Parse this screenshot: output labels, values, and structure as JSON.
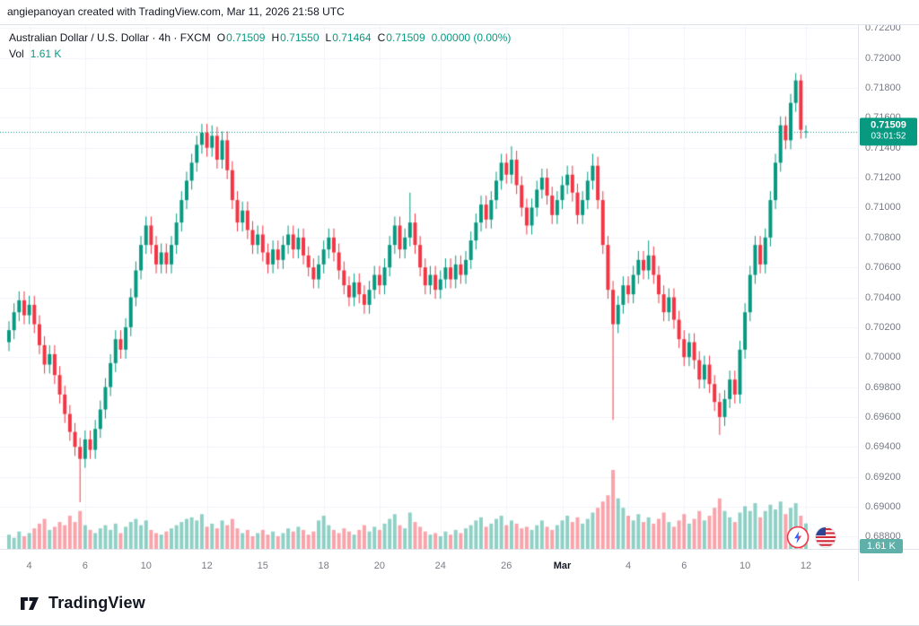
{
  "attribution": "angiepanoyan created with TradingView.com, Mar 11, 2026 21:58 UTC",
  "legend": {
    "symbol_text": "Australian Dollar / U.S. Dollar · 4h · FXCM",
    "ohlc": [
      {
        "label": "O",
        "value": "0.71509"
      },
      {
        "label": "H",
        "value": "0.71550"
      },
      {
        "label": "L",
        "value": "0.71464"
      },
      {
        "label": "C",
        "value": "0.71509"
      }
    ],
    "change": "0.00000 (0.00%)",
    "vol_label": "Vol",
    "vol_value": "1.61 K"
  },
  "price_axis": {
    "ticks": [
      "0.72200",
      "0.72000",
      "0.71800",
      "0.71600",
      "0.71400",
      "0.71200",
      "0.71000",
      "0.70800",
      "0.70600",
      "0.70400",
      "0.70200",
      "0.70000",
      "0.69800",
      "0.69600",
      "0.69400",
      "0.69200",
      "0.69000",
      "0.68800"
    ],
    "badge": {
      "price": "0.71509",
      "countdown": "03:01:52"
    },
    "vol_badge": "1.61 K"
  },
  "footer": {
    "brand": "TradingView"
  },
  "icons": {
    "boost": "lightning-icon",
    "flag": "us-flag-icon"
  },
  "colors": {
    "up": "#089981",
    "down": "#f23645",
    "vol_up": "rgba(8,153,129,0.45)",
    "vol_down": "rgba(242,54,69,0.45)",
    "grid": "#f0f3fa",
    "axis_text": "#787b86",
    "badge_bg": "#089981",
    "vol_badge_bg": "#5fb0a9"
  },
  "chart_data": {
    "type": "candlestick",
    "title": "Australian Dollar / U.S. Dollar",
    "symbol": "AUD/USD",
    "exchange": "FXCM",
    "interval": "4h",
    "ylim": [
      0.6876,
      0.7222
    ],
    "price_tick_step": 0.002,
    "current_price": 0.71509,
    "volume_max_k": 5.0,
    "last_volume_k": 1.61,
    "legend_position": "top-left",
    "grid": true,
    "candles": [
      [
        0.701,
        0.7024,
        0.7004,
        0.7018
      ],
      [
        0.7018,
        0.7036,
        0.7012,
        0.703
      ],
      [
        0.703,
        0.7044,
        0.7024,
        0.7038
      ],
      [
        0.7038,
        0.7044,
        0.7022,
        0.7028
      ],
      [
        0.7028,
        0.7041,
        0.7022,
        0.7035
      ],
      [
        0.7035,
        0.7041,
        0.7016,
        0.7022
      ],
      [
        0.7022,
        0.7028,
        0.7002,
        0.7008
      ],
      [
        0.7008,
        0.7014,
        0.6989,
        0.6995
      ],
      [
        0.6995,
        0.7008,
        0.6989,
        0.7002
      ],
      [
        0.7002,
        0.7008,
        0.6982,
        0.6988
      ],
      [
        0.6988,
        0.6994,
        0.6969,
        0.6975
      ],
      [
        0.6975,
        0.6981,
        0.6956,
        0.6962
      ],
      [
        0.6962,
        0.6968,
        0.6944,
        0.695
      ],
      [
        0.695,
        0.6956,
        0.6934,
        0.694
      ],
      [
        0.694,
        0.6946,
        0.6903,
        0.6932
      ],
      [
        0.6932,
        0.6951,
        0.6926,
        0.6945
      ],
      [
        0.6945,
        0.6951,
        0.6932,
        0.6938
      ],
      [
        0.6938,
        0.6958,
        0.6932,
        0.6952
      ],
      [
        0.6952,
        0.6971,
        0.6946,
        0.6965
      ],
      [
        0.6965,
        0.6986,
        0.6959,
        0.698
      ],
      [
        0.698,
        0.7002,
        0.6974,
        0.6996
      ],
      [
        0.6996,
        0.7018,
        0.699,
        0.7012
      ],
      [
        0.7012,
        0.7018,
        0.6999,
        0.7005
      ],
      [
        0.7005,
        0.7026,
        0.6999,
        0.702
      ],
      [
        0.702,
        0.7046,
        0.7014,
        0.704
      ],
      [
        0.704,
        0.7064,
        0.7034,
        0.7058
      ],
      [
        0.7058,
        0.7081,
        0.7052,
        0.7075
      ],
      [
        0.7075,
        0.7094,
        0.7069,
        0.7088
      ],
      [
        0.7088,
        0.7094,
        0.7069,
        0.7075
      ],
      [
        0.7075,
        0.7081,
        0.7056,
        0.7062
      ],
      [
        0.7062,
        0.7076,
        0.7056,
        0.707
      ],
      [
        0.707,
        0.7076,
        0.7056,
        0.7062
      ],
      [
        0.7062,
        0.7081,
        0.7056,
        0.7075
      ],
      [
        0.7075,
        0.7096,
        0.7069,
        0.709
      ],
      [
        0.709,
        0.7111,
        0.7084,
        0.7105
      ],
      [
        0.7105,
        0.7124,
        0.7099,
        0.7118
      ],
      [
        0.7118,
        0.7136,
        0.7112,
        0.713
      ],
      [
        0.713,
        0.7148,
        0.7124,
        0.7142
      ],
      [
        0.7142,
        0.7156,
        0.7136,
        0.715
      ],
      [
        0.715,
        0.7156,
        0.7134,
        0.714
      ],
      [
        0.714,
        0.7155,
        0.7134,
        0.7148
      ],
      [
        0.7148,
        0.7154,
        0.7126,
        0.7132
      ],
      [
        0.7132,
        0.7151,
        0.7126,
        0.7145
      ],
      [
        0.7145,
        0.7151,
        0.7119,
        0.7125
      ],
      [
        0.7125,
        0.7131,
        0.7099,
        0.7105
      ],
      [
        0.7105,
        0.7111,
        0.7084,
        0.709
      ],
      [
        0.709,
        0.7104,
        0.7084,
        0.7098
      ],
      [
        0.7098,
        0.7104,
        0.7079,
        0.7085
      ],
      [
        0.7085,
        0.7091,
        0.7069,
        0.7075
      ],
      [
        0.7075,
        0.7088,
        0.7069,
        0.7082
      ],
      [
        0.7082,
        0.7088,
        0.7064,
        0.707
      ],
      [
        0.707,
        0.7076,
        0.7056,
        0.7062
      ],
      [
        0.7062,
        0.7078,
        0.7056,
        0.7072
      ],
      [
        0.7072,
        0.7078,
        0.7059,
        0.7065
      ],
      [
        0.7065,
        0.7081,
        0.7059,
        0.7075
      ],
      [
        0.7075,
        0.7088,
        0.7069,
        0.7082
      ],
      [
        0.7082,
        0.7088,
        0.7066,
        0.7072
      ],
      [
        0.7072,
        0.7086,
        0.7066,
        0.708
      ],
      [
        0.708,
        0.7086,
        0.7062,
        0.7068
      ],
      [
        0.7068,
        0.7074,
        0.7054,
        0.706
      ],
      [
        0.706,
        0.7066,
        0.7046,
        0.7052
      ],
      [
        0.7052,
        0.7068,
        0.7046,
        0.7062
      ],
      [
        0.7062,
        0.7078,
        0.7056,
        0.7072
      ],
      [
        0.7072,
        0.7086,
        0.7066,
        0.708
      ],
      [
        0.708,
        0.7086,
        0.7064,
        0.707
      ],
      [
        0.707,
        0.7076,
        0.7052,
        0.7058
      ],
      [
        0.7058,
        0.7064,
        0.7042,
        0.7048
      ],
      [
        0.7048,
        0.7054,
        0.7034,
        0.704
      ],
      [
        0.704,
        0.7056,
        0.7034,
        0.705
      ],
      [
        0.705,
        0.7056,
        0.7036,
        0.7042
      ],
      [
        0.7042,
        0.7048,
        0.7029,
        0.7035
      ],
      [
        0.7035,
        0.7051,
        0.7029,
        0.7045
      ],
      [
        0.7045,
        0.7061,
        0.7039,
        0.7055
      ],
      [
        0.7055,
        0.7061,
        0.7042,
        0.7048
      ],
      [
        0.7048,
        0.7066,
        0.7042,
        0.706
      ],
      [
        0.706,
        0.7081,
        0.7054,
        0.7075
      ],
      [
        0.7075,
        0.7094,
        0.7069,
        0.7088
      ],
      [
        0.7088,
        0.7094,
        0.7066,
        0.7072
      ],
      [
        0.7072,
        0.7086,
        0.7066,
        0.708
      ],
      [
        0.708,
        0.711,
        0.7074,
        0.709
      ],
      [
        0.709,
        0.7096,
        0.7069,
        0.7075
      ],
      [
        0.7075,
        0.7081,
        0.7054,
        0.706
      ],
      [
        0.706,
        0.7066,
        0.7042,
        0.7048
      ],
      [
        0.7048,
        0.7061,
        0.7042,
        0.7055
      ],
      [
        0.7055,
        0.7061,
        0.7039,
        0.7045
      ],
      [
        0.7045,
        0.7058,
        0.7039,
        0.7052
      ],
      [
        0.7052,
        0.7066,
        0.7046,
        0.706
      ],
      [
        0.706,
        0.7066,
        0.7046,
        0.7052
      ],
      [
        0.7052,
        0.7068,
        0.7046,
        0.7062
      ],
      [
        0.7062,
        0.7068,
        0.7049,
        0.7055
      ],
      [
        0.7055,
        0.7071,
        0.7049,
        0.7065
      ],
      [
        0.7065,
        0.7084,
        0.7059,
        0.7078
      ],
      [
        0.7078,
        0.7096,
        0.7072,
        0.709
      ],
      [
        0.709,
        0.7108,
        0.7084,
        0.7102
      ],
      [
        0.7102,
        0.7108,
        0.7086,
        0.7092
      ],
      [
        0.7092,
        0.7111,
        0.7086,
        0.7105
      ],
      [
        0.7105,
        0.7124,
        0.7099,
        0.7118
      ],
      [
        0.7118,
        0.7136,
        0.7112,
        0.713
      ],
      [
        0.713,
        0.7136,
        0.7116,
        0.7122
      ],
      [
        0.7122,
        0.7141,
        0.7116,
        0.7132
      ],
      [
        0.7132,
        0.7138,
        0.7109,
        0.7115
      ],
      [
        0.7115,
        0.7121,
        0.7094,
        0.71
      ],
      [
        0.71,
        0.7106,
        0.7082,
        0.7088
      ],
      [
        0.7088,
        0.7106,
        0.7082,
        0.71
      ],
      [
        0.71,
        0.7118,
        0.7094,
        0.7112
      ],
      [
        0.7112,
        0.7126,
        0.7106,
        0.712
      ],
      [
        0.712,
        0.7126,
        0.7102,
        0.7108
      ],
      [
        0.7108,
        0.7114,
        0.7089,
        0.7095
      ],
      [
        0.7095,
        0.7111,
        0.7089,
        0.7105
      ],
      [
        0.7105,
        0.7121,
        0.7099,
        0.7115
      ],
      [
        0.7115,
        0.7128,
        0.7109,
        0.7122
      ],
      [
        0.7122,
        0.7128,
        0.7104,
        0.711
      ],
      [
        0.711,
        0.7116,
        0.7089,
        0.7095
      ],
      [
        0.7095,
        0.7111,
        0.7089,
        0.7105
      ],
      [
        0.7105,
        0.7124,
        0.7099,
        0.7118
      ],
      [
        0.7118,
        0.7136,
        0.7112,
        0.7128
      ],
      [
        0.7128,
        0.7134,
        0.7099,
        0.7105
      ],
      [
        0.7105,
        0.7111,
        0.7069,
        0.7075
      ],
      [
        0.7075,
        0.7081,
        0.7039,
        0.7045
      ],
      [
        0.7045,
        0.7051,
        0.6958,
        0.7022
      ],
      [
        0.7022,
        0.7041,
        0.7016,
        0.7035
      ],
      [
        0.7035,
        0.7054,
        0.7029,
        0.7048
      ],
      [
        0.7048,
        0.7054,
        0.7036,
        0.7042
      ],
      [
        0.7042,
        0.7061,
        0.7036,
        0.7055
      ],
      [
        0.7055,
        0.7071,
        0.7049,
        0.7065
      ],
      [
        0.7065,
        0.7071,
        0.7052,
        0.7058
      ],
      [
        0.7058,
        0.7078,
        0.7052,
        0.7068
      ],
      [
        0.7068,
        0.7074,
        0.7049,
        0.7055
      ],
      [
        0.7055,
        0.7061,
        0.7036,
        0.7042
      ],
      [
        0.7042,
        0.7048,
        0.7024,
        0.703
      ],
      [
        0.703,
        0.7046,
        0.7024,
        0.704
      ],
      [
        0.704,
        0.7046,
        0.7019,
        0.7025
      ],
      [
        0.7025,
        0.7031,
        0.7006,
        0.7012
      ],
      [
        0.7012,
        0.7018,
        0.6994,
        0.7
      ],
      [
        0.7,
        0.7016,
        0.6994,
        0.701
      ],
      [
        0.701,
        0.7016,
        0.6992,
        0.6998
      ],
      [
        0.6998,
        0.7004,
        0.6979,
        0.6985
      ],
      [
        0.6985,
        0.7001,
        0.6979,
        0.6995
      ],
      [
        0.6995,
        0.7001,
        0.6976,
        0.6982
      ],
      [
        0.6982,
        0.6988,
        0.6964,
        0.697
      ],
      [
        0.697,
        0.6976,
        0.6948,
        0.696
      ],
      [
        0.696,
        0.6978,
        0.6954,
        0.6972
      ],
      [
        0.6972,
        0.6991,
        0.6966,
        0.6985
      ],
      [
        0.6985,
        0.6991,
        0.6969,
        0.6975
      ],
      [
        0.6975,
        0.7011,
        0.6969,
        0.7005
      ],
      [
        0.7005,
        0.7036,
        0.6999,
        0.703
      ],
      [
        0.703,
        0.7061,
        0.7024,
        0.7055
      ],
      [
        0.7055,
        0.7081,
        0.7049,
        0.7075
      ],
      [
        0.7075,
        0.7081,
        0.7056,
        0.7062
      ],
      [
        0.7062,
        0.7086,
        0.7056,
        0.708
      ],
      [
        0.708,
        0.7111,
        0.7074,
        0.7105
      ],
      [
        0.7105,
        0.7136,
        0.7099,
        0.713
      ],
      [
        0.713,
        0.7161,
        0.7124,
        0.7155
      ],
      [
        0.7155,
        0.7161,
        0.7139,
        0.7145
      ],
      [
        0.7145,
        0.7176,
        0.7139,
        0.717
      ],
      [
        0.717,
        0.719,
        0.7164,
        0.7185
      ],
      [
        0.7185,
        0.7189,
        0.7146,
        0.7152
      ],
      [
        0.71509,
        0.7155,
        0.71464,
        0.71509
      ]
    ],
    "volumes_k": [
      0.9,
      0.7,
      1.1,
      0.8,
      1.0,
      1.3,
      1.6,
      1.9,
      1.2,
      1.4,
      1.7,
      1.5,
      2.1,
      1.7,
      2.4,
      1.5,
      1.2,
      1.0,
      1.3,
      1.5,
      1.2,
      1.6,
      1.0,
      1.4,
      1.7,
      1.9,
      1.5,
      1.8,
      1.2,
      1.0,
      0.9,
      1.1,
      1.3,
      1.5,
      1.7,
      1.9,
      2.0,
      1.8,
      2.2,
      1.4,
      1.6,
      1.3,
      1.8,
      1.5,
      1.9,
      1.3,
      1.0,
      1.2,
      0.8,
      1.0,
      1.2,
      0.9,
      1.1,
      0.8,
      1.0,
      1.3,
      1.1,
      1.4,
      1.2,
      0.9,
      1.1,
      1.8,
      2.1,
      1.5,
      1.2,
      1.0,
      1.3,
      1.1,
      0.9,
      1.2,
      1.5,
      1.1,
      1.4,
      1.2,
      1.6,
      1.9,
      2.2,
      1.5,
      1.3,
      2.3,
      1.7,
      1.4,
      1.1,
      0.9,
      1.0,
      0.8,
      1.1,
      0.9,
      1.2,
      1.0,
      1.3,
      1.5,
      1.8,
      2.0,
      1.4,
      1.6,
      1.9,
      2.1,
      1.5,
      1.8,
      1.6,
      1.3,
      1.4,
      1.2,
      1.5,
      1.8,
      1.4,
      1.2,
      1.5,
      1.8,
      2.1,
      1.7,
      2.0,
      1.6,
      1.9,
      2.3,
      2.6,
      3.0,
      3.4,
      5.0,
      3.2,
      2.6,
      2.1,
      1.8,
      2.2,
      1.7,
      2.0,
      1.6,
      1.9,
      2.3,
      1.7,
      1.4,
      1.8,
      2.2,
      1.6,
      1.9,
      2.4,
      1.8,
      2.1,
      2.6,
      3.2,
      2.4,
      2.0,
      1.7,
      2.3,
      2.7,
      2.4,
      2.9,
      2.0,
      2.4,
      2.8,
      2.5,
      3.0,
      2.2,
      2.6,
      2.9,
      2.1,
      1.61
    ],
    "time_ticks": [
      {
        "label": "4",
        "bar": 4
      },
      {
        "label": "6",
        "bar": 15
      },
      {
        "label": "10",
        "bar": 27
      },
      {
        "label": "12",
        "bar": 39
      },
      {
        "label": "15",
        "bar": 50
      },
      {
        "label": "18",
        "bar": 62
      },
      {
        "label": "20",
        "bar": 73
      },
      {
        "label": "24",
        "bar": 85
      },
      {
        "label": "26",
        "bar": 98
      },
      {
        "label": "Mar",
        "bar": 109,
        "major": true
      },
      {
        "label": "4",
        "bar": 122
      },
      {
        "label": "6",
        "bar": 133
      },
      {
        "label": "10",
        "bar": 145
      },
      {
        "label": "12",
        "bar": 157
      }
    ]
  }
}
